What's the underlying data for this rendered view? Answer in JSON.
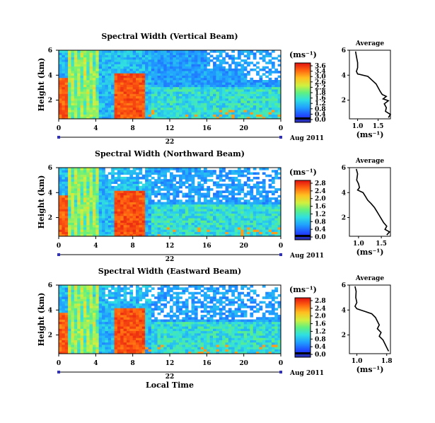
{
  "chart_data": [
    {
      "type": "heatmap",
      "title": "Spectral Width (Vertical Beam)",
      "ylabel": "Height (km)",
      "ylim": [
        0.5,
        6
      ],
      "y_ticks": [
        "6",
        "4",
        "2"
      ],
      "x_ticks": [
        "0",
        "4",
        "8",
        "12",
        "16",
        "20",
        "0"
      ],
      "xlim": [
        0,
        24
      ],
      "day_label": "22",
      "date_label": "Aug 2011",
      "colorbar": {
        "unit": "(ms⁻¹)",
        "ticks": [
          "3.6",
          "3.4",
          "3.0",
          "2.6",
          "2.2",
          "1.8",
          "1.6",
          "1.2",
          "0.8",
          "0.4",
          "0.0"
        ],
        "range": [
          0.0,
          3.6
        ]
      },
      "profile": {
        "title": "Average",
        "xlabel": "(ms⁻¹)",
        "x_ticks": [
          "1.0",
          "1.5"
        ],
        "xlim": [
          0.8,
          1.8
        ],
        "y_ticks": [
          "6",
          "4",
          "2"
        ],
        "points": [
          [
            0.95,
            5.9
          ],
          [
            0.97,
            5.5
          ],
          [
            1.0,
            5.0
          ],
          [
            1.0,
            4.6
          ],
          [
            0.97,
            4.3
          ],
          [
            1.0,
            4.1
          ],
          [
            1.25,
            3.9
          ],
          [
            1.35,
            3.6
          ],
          [
            1.45,
            3.3
          ],
          [
            1.5,
            3.0
          ],
          [
            1.55,
            2.7
          ],
          [
            1.6,
            2.45
          ],
          [
            1.7,
            2.3
          ],
          [
            1.62,
            2.1
          ],
          [
            1.75,
            1.95
          ],
          [
            1.65,
            1.7
          ],
          [
            1.7,
            1.4
          ],
          [
            1.68,
            1.1
          ],
          [
            1.8,
            0.85
          ],
          [
            1.75,
            0.6
          ]
        ]
      }
    },
    {
      "type": "heatmap",
      "title": "Spectral Width (Northward Beam)",
      "ylabel": "Height (km)",
      "ylim": [
        0.5,
        6
      ],
      "y_ticks": [
        "6",
        "4",
        "2"
      ],
      "x_ticks": [
        "0",
        "4",
        "8",
        "12",
        "16",
        "20",
        "0"
      ],
      "xlim": [
        0,
        24
      ],
      "day_label": "22",
      "date_label": "Aug 2011",
      "colorbar": {
        "unit": "(ms⁻¹)",
        "ticks": [
          "2.8",
          "2.4",
          "2.0",
          "1.6",
          "1.2",
          "0.8",
          "0.4",
          "0.0"
        ],
        "range": [
          0.0,
          2.8
        ]
      },
      "profile": {
        "title": "Average",
        "xlabel": "(ms⁻¹)",
        "x_ticks": [
          "1.0",
          "1.5"
        ],
        "xlim": [
          0.8,
          1.7
        ],
        "y_ticks": [
          "6",
          "4",
          "2"
        ],
        "points": [
          [
            0.95,
            5.9
          ],
          [
            0.98,
            5.5
          ],
          [
            0.96,
            5.0
          ],
          [
            1.0,
            4.7
          ],
          [
            1.02,
            4.4
          ],
          [
            0.98,
            4.2
          ],
          [
            1.1,
            4.0
          ],
          [
            1.15,
            3.7
          ],
          [
            1.2,
            3.4
          ],
          [
            1.28,
            3.1
          ],
          [
            1.35,
            2.8
          ],
          [
            1.4,
            2.5
          ],
          [
            1.45,
            2.2
          ],
          [
            1.5,
            1.9
          ],
          [
            1.55,
            1.6
          ],
          [
            1.62,
            1.3
          ],
          [
            1.58,
            1.05
          ],
          [
            1.68,
            0.85
          ],
          [
            1.62,
            0.6
          ]
        ]
      }
    },
    {
      "type": "heatmap",
      "title": "Spectral Width (Eastward Beam)",
      "ylabel": "Height (km)",
      "xlabel": "Local Time",
      "ylim": [
        0.5,
        6
      ],
      "y_ticks": [
        "6",
        "4",
        "2"
      ],
      "x_ticks": [
        "0",
        "4",
        "8",
        "12",
        "16",
        "20",
        "0"
      ],
      "xlim": [
        0,
        24
      ],
      "day_label": "22",
      "date_label": "Aug 2011",
      "colorbar": {
        "unit": "(ms⁻¹)",
        "ticks": [
          "2.8",
          "2.4",
          "2.0",
          "1.6",
          "1.2",
          "0.8",
          "0.4",
          "0.0"
        ],
        "range": [
          0.0,
          2.8
        ]
      },
      "profile": {
        "title": "Average",
        "xlabel": "(ms⁻¹)",
        "x_ticks": [
          "1.0",
          "1.8"
        ],
        "xlim": [
          0.8,
          1.9
        ],
        "y_ticks": [
          "6",
          "4",
          "2"
        ],
        "points": [
          [
            0.95,
            5.9
          ],
          [
            0.98,
            5.5
          ],
          [
            0.97,
            5.0
          ],
          [
            1.0,
            4.6
          ],
          [
            0.95,
            4.3
          ],
          [
            1.0,
            4.1
          ],
          [
            1.2,
            3.9
          ],
          [
            1.4,
            3.7
          ],
          [
            1.5,
            3.4
          ],
          [
            1.55,
            3.1
          ],
          [
            1.6,
            2.8
          ],
          [
            1.55,
            2.5
          ],
          [
            1.65,
            2.2
          ],
          [
            1.6,
            1.9
          ],
          [
            1.7,
            1.6
          ],
          [
            1.75,
            1.3
          ],
          [
            1.8,
            1.0
          ],
          [
            1.85,
            0.7
          ]
        ]
      }
    }
  ]
}
